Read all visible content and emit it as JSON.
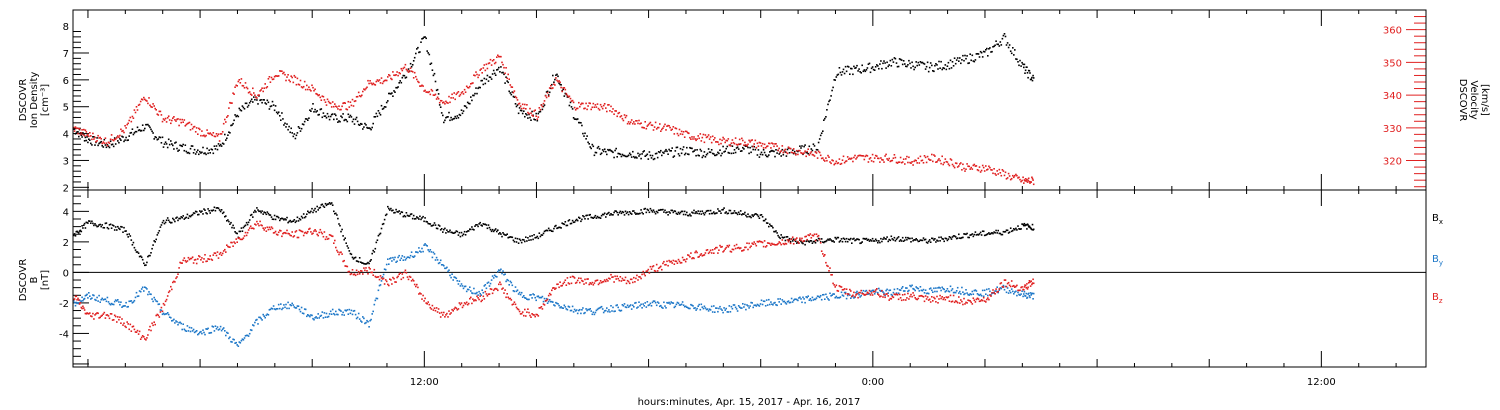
{
  "chart_data": [
    {
      "type": "scatter",
      "panel": "top",
      "xlabel": "hours:minutes, Apr. 15, 2017 - Apr. 16, 2017",
      "ylabel_left": [
        "DSCOVR",
        "Ion Density",
        "[cm⁻³]"
      ],
      "ylabel_right": [
        "DSCOVR",
        "Velocity",
        "[km/s]"
      ],
      "x_ticks": [
        {
          "hour": 12,
          "label": "12:00"
        },
        {
          "hour": 24,
          "label": "0:00"
        },
        {
          "hour": 36,
          "label": "12:00"
        }
      ],
      "xlim": [
        2.6,
        38.8
      ],
      "ylim_left": [
        1.9,
        8.6
      ],
      "ylim_right": [
        311,
        366
      ],
      "y_ticks_left": [
        "2",
        "3",
        "4",
        "5",
        "6",
        "7",
        "8"
      ],
      "y_ticks_right": [
        "320",
        "330",
        "340",
        "350",
        "360"
      ],
      "series": [
        {
          "color": "#000000",
          "axis": "left",
          "x": [
            2.6,
            3,
            3.5,
            4,
            4.5,
            5,
            5.5,
            6,
            6.5,
            7,
            7.5,
            8,
            8.5,
            9,
            9.5,
            10,
            10.5,
            11,
            11.5,
            12,
            12.5,
            13,
            13.5,
            14,
            14.5,
            15,
            15.5,
            16,
            16.5,
            17,
            17.5,
            18,
            18.5,
            19,
            19.5,
            20,
            20.5,
            21,
            21.5,
            22,
            22.5,
            23,
            23.5,
            24,
            24.5,
            25,
            25.5,
            26,
            26.5,
            27,
            27.5,
            28,
            28.3
          ],
          "y": [
            4.2,
            3.8,
            3.6,
            3.9,
            4.3,
            3.7,
            3.5,
            3.4,
            3.5,
            4.8,
            5.3,
            5.0,
            3.9,
            5.0,
            4.6,
            4.6,
            4.2,
            5.3,
            6.3,
            7.6,
            4.6,
            4.8,
            5.9,
            6.5,
            4.9,
            4.6,
            6.3,
            4.7,
            3.4,
            3.3,
            3.3,
            3.2,
            3.3,
            3.4,
            3.3,
            3.4,
            3.5,
            3.3,
            3.3,
            3.4,
            3.5,
            6.3,
            6.4,
            6.5,
            6.7,
            6.6,
            6.5,
            6.6,
            6.8,
            7.0,
            7.6,
            6.5,
            6.0
          ]
        },
        {
          "color": "#e02020",
          "axis": "right",
          "x": [
            2.6,
            3,
            3.5,
            4,
            4.5,
            5,
            5.5,
            6,
            6.5,
            7,
            7.5,
            8,
            8.5,
            9,
            9.5,
            10,
            10.5,
            11,
            11.5,
            12,
            12.5,
            13,
            13.5,
            14,
            14.5,
            15,
            15.5,
            16,
            16.5,
            17,
            17.5,
            18,
            18.5,
            19,
            19.5,
            20,
            20.5,
            21,
            21.5,
            22,
            22.5,
            23,
            23.5,
            24,
            24.5,
            25,
            25.5,
            26,
            26.5,
            27,
            27.5,
            28,
            28.3
          ],
          "y": [
            330,
            328,
            326,
            330,
            340,
            333,
            332,
            329,
            327,
            345,
            340,
            347,
            345,
            342,
            337,
            337,
            344,
            345,
            349,
            342,
            338,
            341,
            348,
            352,
            338,
            334,
            345,
            337,
            337,
            336,
            332,
            331,
            330,
            328,
            327,
            326,
            326,
            325,
            324,
            323,
            322,
            320,
            321,
            321,
            321,
            320,
            321,
            320,
            318,
            318,
            316,
            314,
            314
          ]
        }
      ]
    },
    {
      "type": "scatter",
      "panel": "bottom",
      "xlabel": "hours:minutes, Apr. 15, 2017 - Apr. 16, 2017",
      "ylabel_left": [
        "DSCOVR",
        "B",
        "[nT]"
      ],
      "xlim": [
        2.6,
        38.8
      ],
      "ylim": [
        -6.2,
        5.4
      ],
      "y_ticks_left": [
        "-4",
        "-2",
        "0",
        "2",
        "4"
      ],
      "zero_line": true,
      "series": [
        {
          "name": "Bx",
          "legend_base": "B",
          "legend_sub": "x",
          "color": "#000000",
          "x": [
            2.6,
            3,
            3.5,
            4,
            4.5,
            5,
            5.5,
            6,
            6.5,
            7,
            7.5,
            8,
            8.5,
            9,
            9.5,
            10,
            10.5,
            11,
            11.5,
            12,
            12.5,
            13,
            13.5,
            14,
            14.5,
            15,
            15.5,
            16,
            16.5,
            17,
            17.5,
            18,
            18.5,
            19,
            19.5,
            20,
            20.5,
            21,
            21.5,
            22,
            22.5,
            23,
            23.5,
            24,
            24.5,
            25,
            25.5,
            26,
            26.5,
            27,
            27.5,
            28,
            28.3
          ],
          "y": [
            2.5,
            3.3,
            3.1,
            2.8,
            0.5,
            3.4,
            3.6,
            4.0,
            4.2,
            2.5,
            4.2,
            3.6,
            3.4,
            4.1,
            4.6,
            1.2,
            0.5,
            4.2,
            3.8,
            3.5,
            2.8,
            2.5,
            3.3,
            2.6,
            2.1,
            2.4,
            3.0,
            3.5,
            3.7,
            3.9,
            4.0,
            4.1,
            4.0,
            3.9,
            4.0,
            4.1,
            3.9,
            3.7,
            2.4,
            2.0,
            2.1,
            2.2,
            2.1,
            2.1,
            2.3,
            2.2,
            2.1,
            2.3,
            2.5,
            2.6,
            2.7,
            3.1,
            3.0
          ]
        },
        {
          "name": "By",
          "legend_base": "B",
          "legend_sub": "y",
          "color": "#1e78c8",
          "x": [
            2.6,
            3,
            3.5,
            4,
            4.5,
            5,
            5.5,
            6,
            6.5,
            7,
            7.5,
            8,
            8.5,
            9,
            9.5,
            10,
            10.5,
            11,
            11.5,
            12,
            12.5,
            13,
            13.5,
            14,
            14.5,
            15,
            15.5,
            16,
            16.5,
            17,
            17.5,
            18,
            18.5,
            19,
            19.5,
            20,
            20.5,
            21,
            21.5,
            22,
            22.5,
            23,
            23.5,
            24,
            24.5,
            25,
            25.5,
            26,
            26.5,
            27,
            27.5,
            28,
            28.3
          ],
          "y": [
            -2.0,
            -1.5,
            -1.8,
            -2.1,
            -1.0,
            -2.6,
            -3.5,
            -3.9,
            -3.5,
            -4.8,
            -3.2,
            -2.2,
            -2.1,
            -2.9,
            -2.6,
            -2.5,
            -3.3,
            0.8,
            1.0,
            1.7,
            0.5,
            -1.0,
            -1.3,
            0.2,
            -1.4,
            -1.6,
            -2.0,
            -2.4,
            -2.5,
            -2.3,
            -2.2,
            -2.0,
            -2.1,
            -2.1,
            -2.3,
            -2.4,
            -2.2,
            -2.0,
            -1.9,
            -1.8,
            -1.6,
            -1.5,
            -1.4,
            -1.2,
            -1.3,
            -0.9,
            -1.2,
            -1.0,
            -1.2,
            -1.3,
            -1.0,
            -1.4,
            -1.5
          ]
        },
        {
          "name": "Bz",
          "legend_base": "B",
          "legend_sub": "z",
          "color": "#e02020",
          "x": [
            2.6,
            3,
            3.5,
            4,
            4.5,
            5,
            5.5,
            6,
            6.5,
            7,
            7.5,
            8,
            8.5,
            9,
            9.5,
            10,
            10.5,
            11,
            11.5,
            12,
            12.5,
            13,
            13.5,
            14,
            14.5,
            15,
            15.5,
            16,
            16.5,
            17,
            17.5,
            18,
            18.5,
            19,
            19.5,
            20,
            20.5,
            21,
            21.5,
            22,
            22.5,
            23,
            23.5,
            24,
            24.5,
            25,
            25.5,
            26,
            26.5,
            27,
            27.5,
            28,
            28.3
          ],
          "y": [
            -1.5,
            -2.8,
            -2.7,
            -3.3,
            -4.3,
            -2.2,
            0.8,
            0.9,
            1.2,
            2.2,
            3.3,
            2.7,
            2.5,
            2.8,
            2.3,
            0.0,
            0.2,
            -0.6,
            0.0,
            -1.8,
            -2.8,
            -2.0,
            -1.6,
            -0.8,
            -2.5,
            -2.7,
            -0.8,
            -0.4,
            -0.6,
            -0.3,
            -0.6,
            0.2,
            0.6,
            1.0,
            1.4,
            1.6,
            1.7,
            1.9,
            2.0,
            2.2,
            2.4,
            -1.0,
            -1.4,
            -1.2,
            -1.6,
            -1.5,
            -1.8,
            -1.6,
            -1.9,
            -1.7,
            -0.6,
            -1.0,
            -0.5
          ]
        }
      ]
    }
  ]
}
